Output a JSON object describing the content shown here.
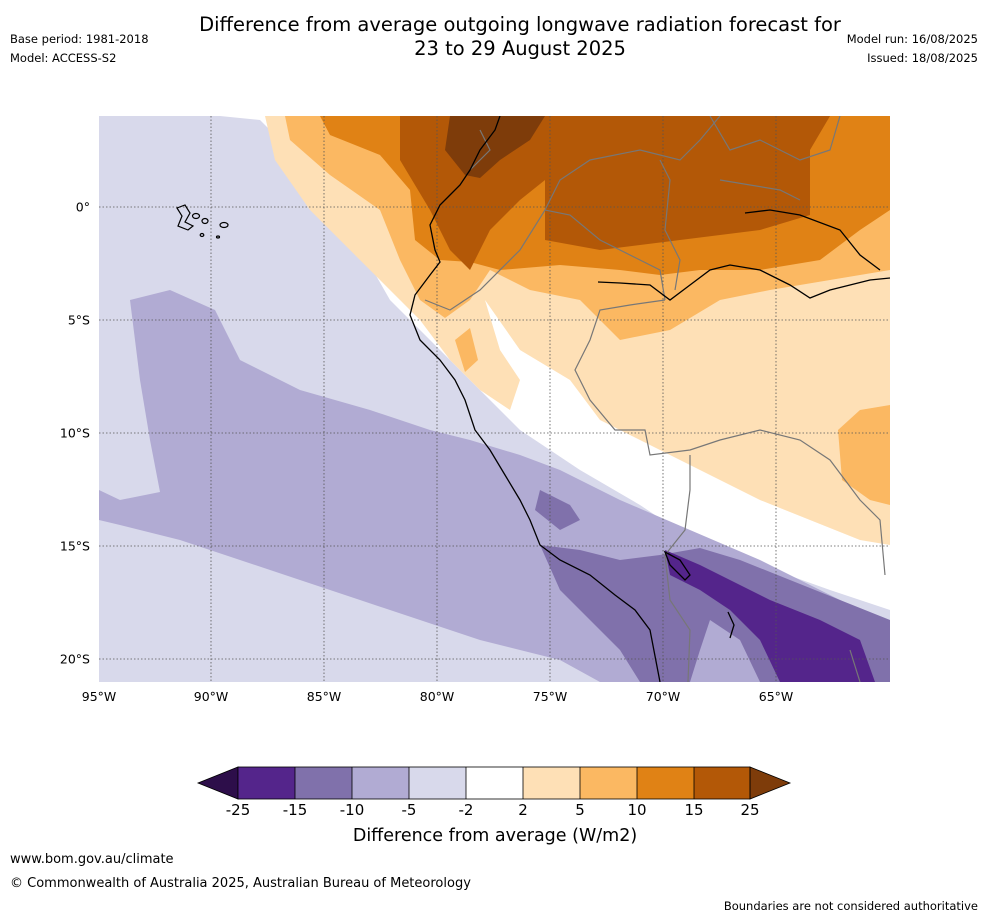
{
  "title": {
    "line1": "Difference from average outgoing longwave radiation forecast for",
    "line2": "23 to 29 August 2025"
  },
  "meta_left": {
    "base_period": "Base period: 1981-2018",
    "model": "Model: ACCESS-S2"
  },
  "meta_right": {
    "model_run": "Model run: 16/08/2025",
    "issued": "Issued: 18/08/2025"
  },
  "map": {
    "lat_labels": [
      "0°",
      "5°S",
      "10°S",
      "15°S",
      "20°S"
    ],
    "lon_labels": [
      "95°W",
      "90°W",
      "85°W",
      "80°W",
      "75°W",
      "70°W",
      "65°W"
    ]
  },
  "colorbar": {
    "title": "Difference from average (W/m2)",
    "tick_labels": [
      "-25",
      "-15",
      "-10",
      "-5",
      "-2",
      "2",
      "5",
      "10",
      "15",
      "25"
    ],
    "colors": [
      "#2d0e4a",
      "#54258b",
      "#8071ab",
      "#b1abd3",
      "#d8d9eb",
      "#ffffff",
      "#fee0b6",
      "#fbb862",
      "#e08215",
      "#b35807",
      "#7e3c0a"
    ]
  },
  "footer": {
    "website": "www.bom.gov.au/climate",
    "copyright": "© Commonwealth of Australia 2025, Australian Bureau of Meteorology",
    "disclaimer": "Boundaries are not considered authoritative"
  }
}
